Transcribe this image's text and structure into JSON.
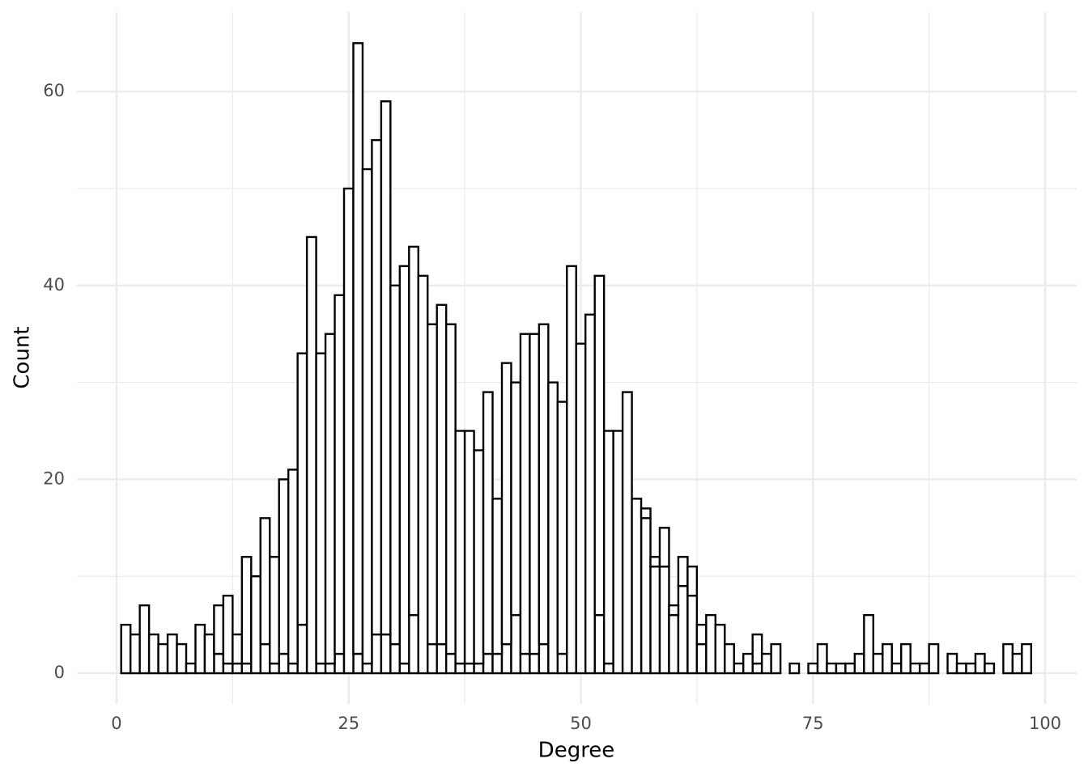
{
  "chart_data": {
    "type": "histogram",
    "x_label": "Degree",
    "y_label": "Count",
    "bins": [
      0.5,
      1.5,
      2.5,
      3.5,
      4.5,
      5.5,
      6.5,
      7.5,
      8.5,
      9.5,
      10.5,
      11.5,
      12.5,
      13.5,
      14.5,
      15.5,
      16.5,
      17.5,
      18.5,
      19.5,
      20.5,
      21.5,
      22.5,
      23.5,
      24.5,
      25.5,
      26.5,
      27.5,
      28.5,
      29.5,
      30.5,
      31.5,
      32.5,
      33.5,
      34.5,
      35.5,
      36.5,
      37.5,
      38.5,
      39.5,
      40.5,
      41.5,
      42.5,
      43.5,
      44.5,
      45.5,
      46.5,
      47.5,
      48.5,
      49.5,
      50.5,
      51.5,
      52.5,
      53.5,
      54.5,
      55.5,
      56.5,
      57.5,
      58.5,
      59.5,
      60.5,
      61.5,
      62.5,
      63.5,
      64.5,
      65.5,
      66.5,
      67.5,
      68.5,
      69.5,
      70.5,
      71.5,
      72.5,
      73.5,
      74.5,
      75.5,
      76.5,
      77.5,
      78.5,
      79.5,
      80.5,
      81.5,
      82.5,
      83.5,
      84.5,
      85.5,
      86.5,
      87.5,
      88.5,
      89.5,
      90.5,
      91.5,
      92.5,
      93.5,
      94.5,
      95.5,
      96.5,
      97.5,
      98.5
    ],
    "series": [
      {
        "color": "#ffffff",
        "values": [
          0,
          0,
          0,
          0,
          0,
          0,
          0,
          0,
          0,
          0,
          2,
          1,
          1,
          1,
          0,
          3,
          1,
          2,
          1,
          5,
          0,
          1,
          1,
          2,
          0,
          2,
          1,
          4,
          4,
          3,
          1,
          6,
          0,
          3,
          3,
          2,
          1,
          1,
          1,
          2,
          2,
          3,
          6,
          2,
          2,
          3,
          0,
          2,
          0,
          0,
          0,
          6,
          1,
          0,
          0,
          0,
          16,
          11,
          11,
          6,
          9,
          8,
          3,
          0,
          0,
          0,
          0,
          0,
          1,
          0,
          0,
          0,
          0,
          0,
          0,
          0,
          0,
          0,
          0,
          0,
          0,
          0,
          0,
          0,
          0,
          0,
          0,
          0,
          0,
          0,
          0,
          0,
          0,
          0,
          0,
          0,
          0,
          0
        ]
      },
      {
        "color": "#ffffff",
        "values": [
          5,
          4,
          7,
          4,
          3,
          4,
          3,
          1,
          5,
          4,
          5,
          7,
          3,
          11,
          10,
          13,
          11,
          18,
          20,
          28,
          45,
          32,
          34,
          37,
          50,
          63,
          51,
          51,
          55,
          37,
          41,
          38,
          41,
          33,
          35,
          34,
          24,
          24,
          22,
          27,
          16,
          29,
          24,
          33,
          33,
          33,
          30,
          26,
          42,
          34,
          37,
          35,
          24,
          25,
          29,
          18,
          1,
          1,
          4,
          1,
          3,
          3,
          2,
          6,
          5,
          3,
          1,
          2,
          3,
          2,
          3,
          0,
          1,
          0,
          1,
          3,
          1,
          1,
          1,
          2,
          6,
          2,
          3,
          1,
          3,
          1,
          1,
          3,
          0,
          2,
          1,
          1,
          2,
          1,
          0,
          3,
          2,
          3
        ]
      }
    ],
    "stacked": true,
    "edge_color": "#000000",
    "xlim": [
      -4.27,
      103.4
    ],
    "ylim": [
      -3.17,
      68.2
    ],
    "xticks": [
      0,
      25,
      50,
      75,
      100
    ],
    "yticks": [
      0,
      20,
      40,
      60
    ],
    "x_minor_grid": [
      12.5,
      37.5,
      62.5,
      87.5
    ],
    "y_minor_grid": [
      10,
      30,
      50
    ],
    "grid": true
  }
}
